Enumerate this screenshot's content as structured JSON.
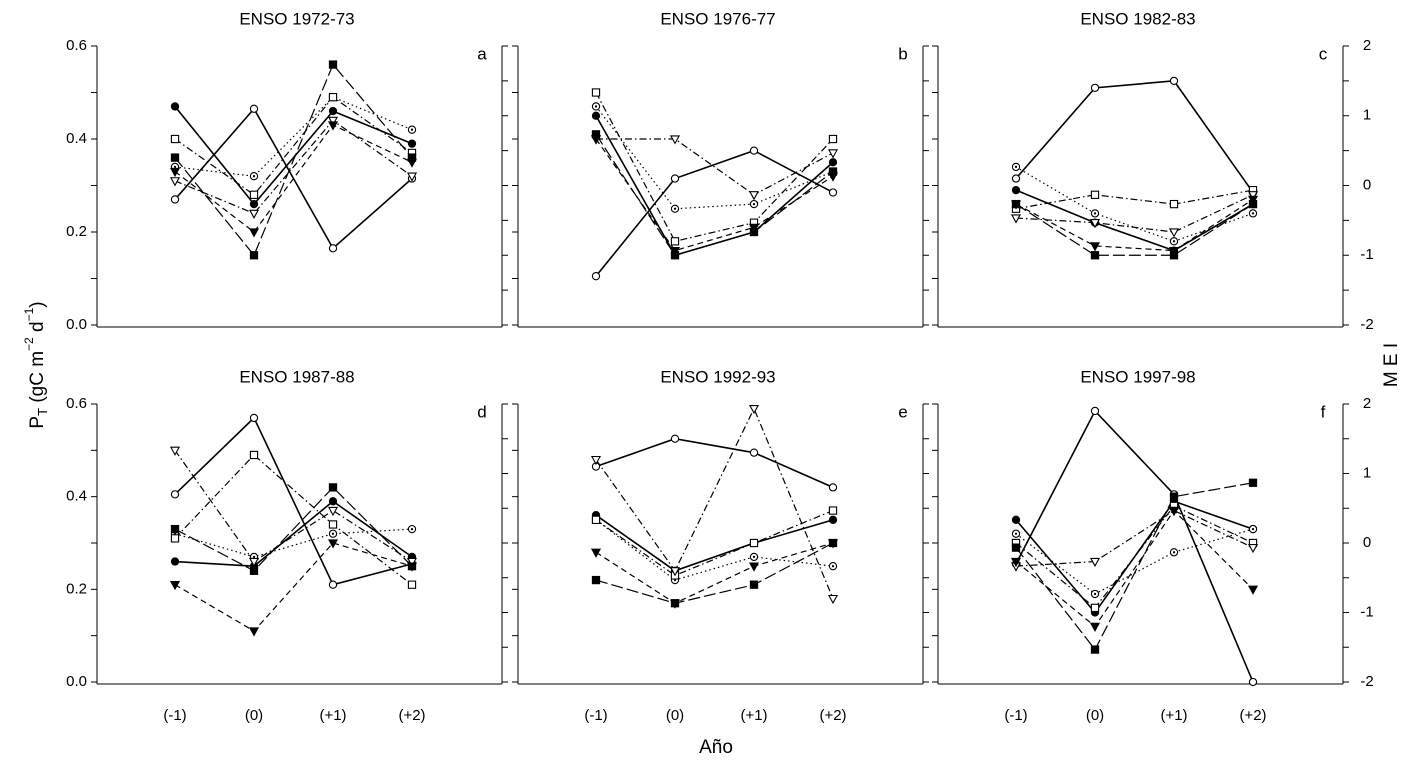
{
  "figure": {
    "xlabel": "Año",
    "ylabel": [
      "P",
      "T",
      " (gC m",
      "−2",
      " d",
      "−1",
      ")"
    ],
    "y2label": "M E I",
    "series_styles": [
      {
        "marker": "circle-filled",
        "dash": "solid",
        "color": "#000000"
      },
      {
        "marker": "circle-open",
        "dash": "solid",
        "color": "#000000"
      },
      {
        "marker": "circle-dot",
        "dash": "dotted",
        "color": "#000000"
      },
      {
        "marker": "square-open",
        "dash": "dashdot",
        "color": "#000000"
      },
      {
        "marker": "square-filled",
        "dash": "longdash",
        "color": "#000000"
      },
      {
        "marker": "triangle-open",
        "dash": "dashdot",
        "color": "#000000"
      },
      {
        "marker": "triangle-filled",
        "dash": "dashed",
        "color": "#000000"
      }
    ]
  },
  "chart_data": [
    {
      "type": "line",
      "title": "ENSO 1972-73",
      "panel_label": "a",
      "categories": [
        "(-1)",
        "(0)",
        "(+1)",
        "(+2)"
      ],
      "xtick_labels": false,
      "ylim": [
        0,
        0.6
      ],
      "yticks": [
        {
          "value": 0,
          "label": "0.0"
        },
        0.2,
        0.4,
        0.6
      ],
      "ytick_labels": true,
      "y2lim": [
        -2,
        2
      ],
      "y2ticks": [
        -2,
        -1,
        0,
        1,
        2
      ],
      "y2tick_labels": false,
      "series": [
        {
          "values": [
            0.47,
            0.26,
            0.46,
            0.39
          ]
        },
        {
          "axis": "y2",
          "values": [
            -0.2,
            1.1,
            -0.9,
            0.1
          ]
        },
        {
          "values": [
            0.34,
            0.32,
            0.49,
            0.42
          ]
        },
        {
          "values": [
            0.4,
            0.28,
            0.49,
            0.37
          ]
        },
        {
          "values": [
            0.36,
            0.15,
            0.56,
            0.36
          ]
        },
        {
          "values": [
            0.31,
            0.24,
            0.44,
            0.32
          ]
        },
        {
          "values": [
            0.33,
            0.2,
            0.43,
            0.35
          ]
        }
      ]
    },
    {
      "type": "line",
      "title": "ENSO 1976-77",
      "panel_label": "b",
      "categories": [
        "(-1)",
        "(0)",
        "(+1)",
        "(+2)"
      ],
      "xtick_labels": false,
      "ylim": [
        0,
        0.6
      ],
      "yticks": [
        {
          "value": 0,
          "label": "0.0"
        },
        0.2,
        0.4,
        0.6
      ],
      "ytick_labels": false,
      "y2lim": [
        -2,
        2
      ],
      "y2ticks": [
        -2,
        -1,
        0,
        1,
        2
      ],
      "y2tick_labels": false,
      "series": [
        {
          "values": [
            0.45,
            0.15,
            0.2,
            0.35
          ]
        },
        {
          "axis": "y2",
          "values": [
            -1.3,
            0.1,
            0.5,
            -0.1
          ]
        },
        {
          "values": [
            0.47,
            0.25,
            0.26,
            0.33
          ]
        },
        {
          "values": [
            0.5,
            0.18,
            0.22,
            0.4
          ]
        },
        {
          "values": [
            0.41,
            0.15,
            0.2,
            0.33
          ]
        },
        {
          "values": [
            0.4,
            0.4,
            0.28,
            0.37
          ]
        },
        {
          "values": [
            0.4,
            0.16,
            0.21,
            0.32
          ]
        }
      ]
    },
    {
      "type": "line",
      "title": "ENSO 1982-83",
      "panel_label": "c",
      "categories": [
        "(-1)",
        "(0)",
        "(+1)",
        "(+2)"
      ],
      "xtick_labels": false,
      "ylim": [
        0,
        0.6
      ],
      "yticks": [
        {
          "value": 0,
          "label": "0.0"
        },
        0.2,
        0.4,
        0.6
      ],
      "ytick_labels": false,
      "y2lim": [
        -2,
        2
      ],
      "y2ticks": [
        -2,
        -1,
        0,
        1,
        2
      ],
      "y2tick_labels": true,
      "series": [
        {
          "values": [
            0.29,
            0.22,
            0.16,
            0.26
          ]
        },
        {
          "axis": "y2",
          "values": [
            0.1,
            1.4,
            1.5,
            -0.1
          ]
        },
        {
          "values": [
            0.34,
            0.24,
            0.18,
            0.24
          ]
        },
        {
          "values": [
            0.25,
            0.28,
            0.26,
            0.29
          ]
        },
        {
          "values": [
            0.26,
            0.15,
            0.15,
            0.26
          ]
        },
        {
          "values": [
            0.23,
            0.22,
            0.2,
            0.28
          ]
        },
        {
          "values": [
            0.26,
            0.17,
            0.16,
            0.27
          ]
        }
      ]
    },
    {
      "type": "line",
      "title": "ENSO 1987-88",
      "panel_label": "d",
      "categories": [
        "(-1)",
        "(0)",
        "(+1)",
        "(+2)"
      ],
      "xtick_labels": true,
      "ylim": [
        0,
        0.6
      ],
      "yticks": [
        {
          "value": 0,
          "label": "0.0"
        },
        0.2,
        0.4,
        0.6
      ],
      "ytick_labels": true,
      "y2lim": [
        -2,
        2
      ],
      "y2ticks": [
        -2,
        -1,
        0,
        1,
        2
      ],
      "y2tick_labels": false,
      "series": [
        {
          "values": [
            0.26,
            0.25,
            0.39,
            0.27
          ]
        },
        {
          "axis": "y2",
          "values": [
            0.7,
            1.8,
            -0.6,
            -0.3
          ]
        },
        {
          "values": [
            0.32,
            0.27,
            0.32,
            0.33
          ]
        },
        {
          "values": [
            0.31,
            0.49,
            0.34,
            0.21
          ]
        },
        {
          "values": [
            0.33,
            0.24,
            0.42,
            0.25
          ]
        },
        {
          "values": [
            0.5,
            0.26,
            0.37,
            0.26
          ]
        },
        {
          "values": [
            0.21,
            0.11,
            0.3,
            0.25
          ]
        }
      ]
    },
    {
      "type": "line",
      "title": "ENSO 1992-93",
      "panel_label": "e",
      "categories": [
        "(-1)",
        "(0)",
        "(+1)",
        "(+2)"
      ],
      "xtick_labels": true,
      "ylim": [
        0,
        0.6
      ],
      "yticks": [
        {
          "value": 0,
          "label": "0.0"
        },
        0.2,
        0.4,
        0.6
      ],
      "ytick_labels": false,
      "y2lim": [
        -2,
        2
      ],
      "y2ticks": [
        -2,
        -1,
        0,
        1,
        2
      ],
      "y2tick_labels": false,
      "series": [
        {
          "values": [
            0.36,
            0.24,
            0.3,
            0.35
          ]
        },
        {
          "axis": "y2",
          "values": [
            1.1,
            1.5,
            1.3,
            0.8
          ]
        },
        {
          "values": [
            0.35,
            0.22,
            0.27,
            0.25
          ]
        },
        {
          "values": [
            0.35,
            0.23,
            0.3,
            0.37
          ]
        },
        {
          "values": [
            0.22,
            0.17,
            0.21,
            0.3
          ]
        },
        {
          "values": [
            0.48,
            0.24,
            0.59,
            0.18
          ]
        },
        {
          "values": [
            0.28,
            0.17,
            0.25,
            0.3
          ]
        }
      ]
    },
    {
      "type": "line",
      "title": "ENSO 1997-98",
      "panel_label": "f",
      "categories": [
        "(-1)",
        "(0)",
        "(+1)",
        "(+2)"
      ],
      "xtick_labels": true,
      "ylim": [
        0,
        0.6
      ],
      "yticks": [
        {
          "value": 0,
          "label": "0.0"
        },
        0.2,
        0.4,
        0.6
      ],
      "ytick_labels": false,
      "y2lim": [
        -2,
        2
      ],
      "y2ticks": [
        -2,
        -1,
        0,
        1,
        2
      ],
      "y2tick_labels": true,
      "series": [
        {
          "values": [
            0.35,
            0.15,
            0.39,
            0.33
          ]
        },
        {
          "axis": "y2",
          "values": [
            -0.3,
            1.9,
            0.7,
            -2.0
          ]
        },
        {
          "values": [
            0.32,
            0.19,
            0.28,
            0.33
          ]
        },
        {
          "values": [
            0.3,
            0.16,
            0.38,
            0.3
          ]
        },
        {
          "values": [
            0.29,
            0.07,
            0.4,
            0.43
          ]
        },
        {
          "values": [
            0.25,
            0.26,
            0.37,
            0.29
          ]
        },
        {
          "values": [
            0.26,
            0.12,
            0.37,
            0.2
          ]
        }
      ]
    }
  ]
}
